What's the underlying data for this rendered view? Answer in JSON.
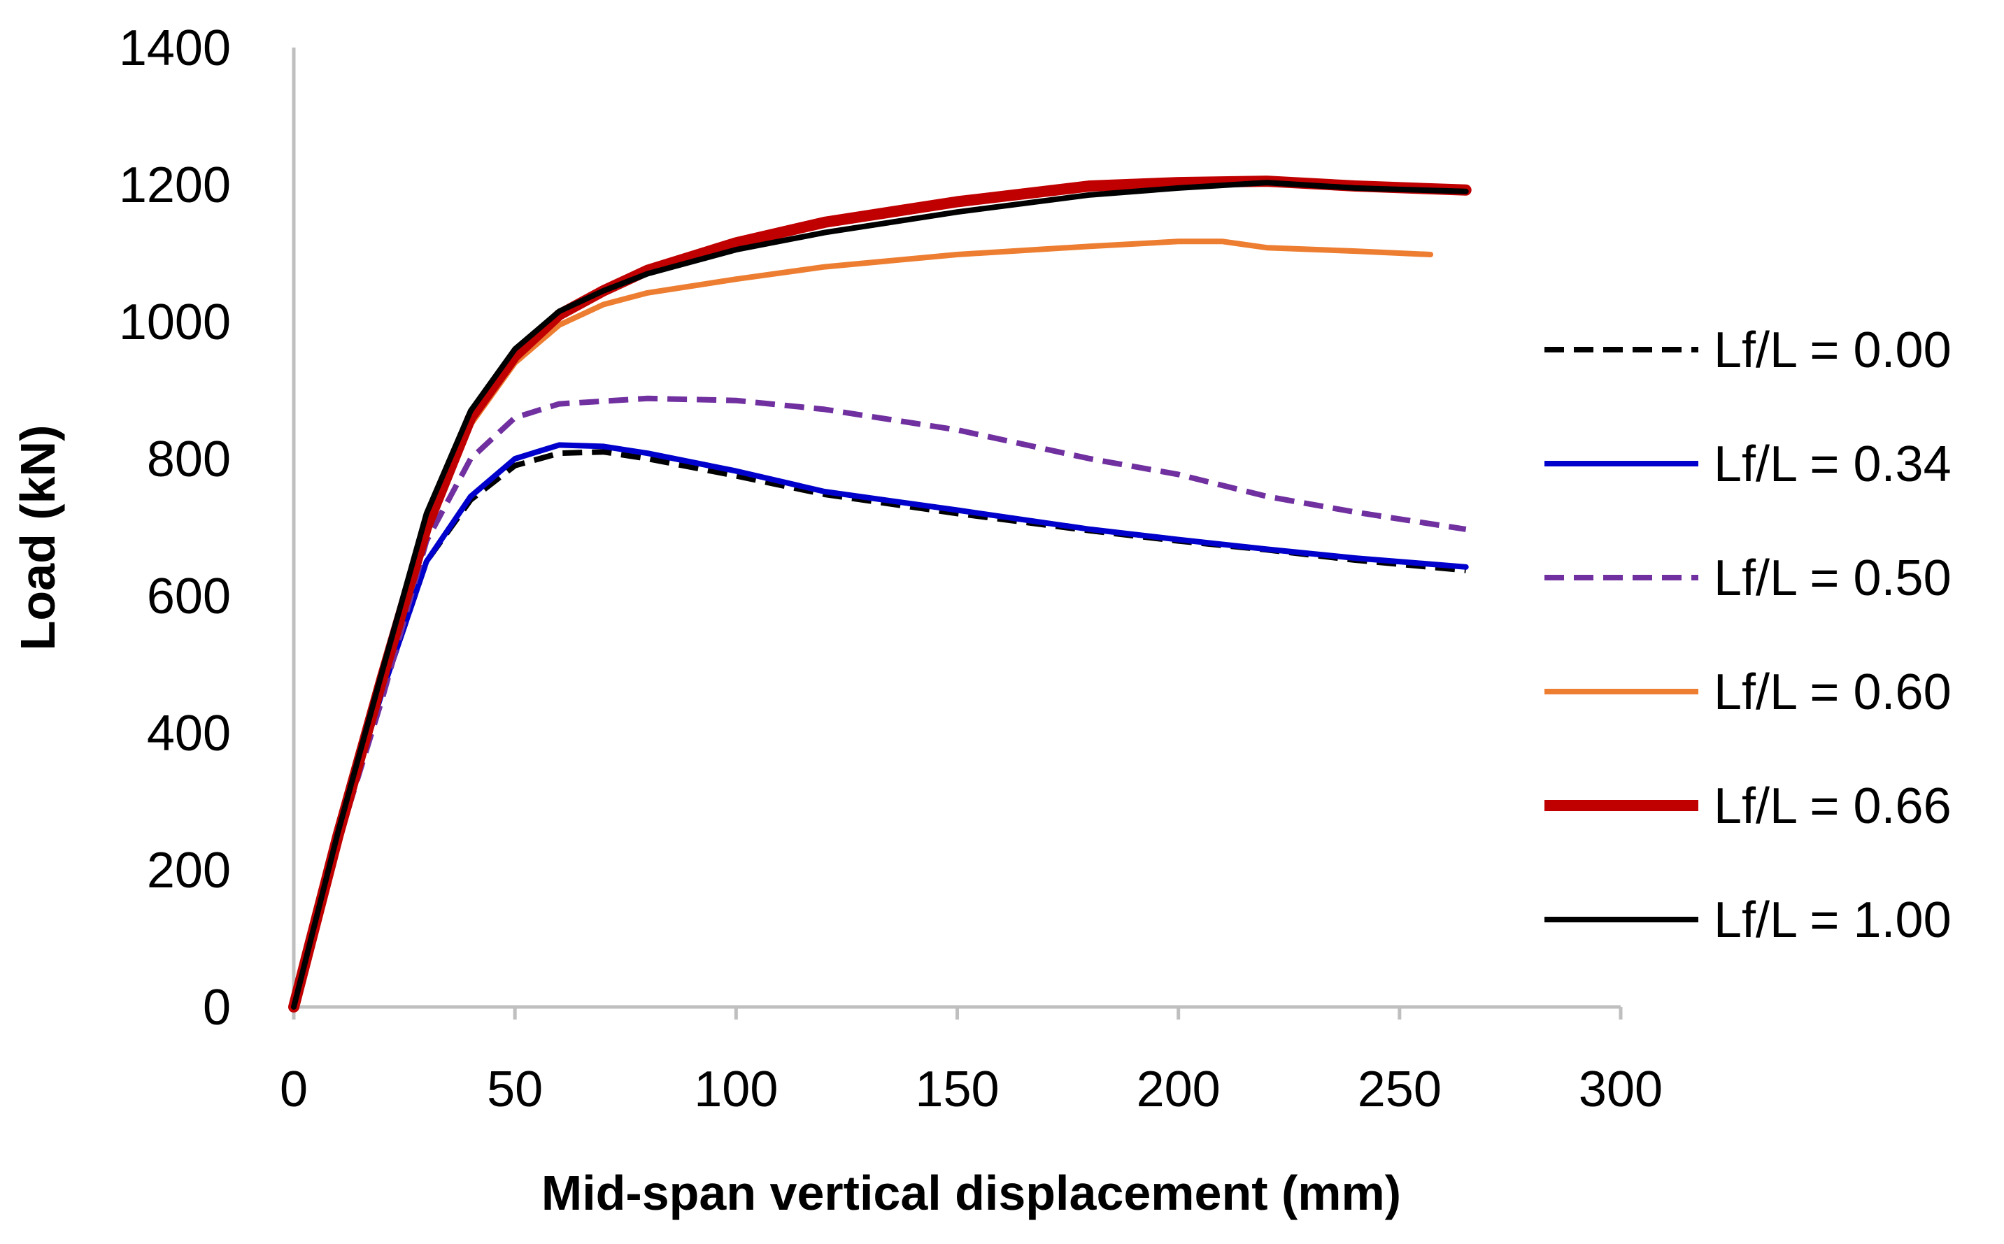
{
  "chart_data": {
    "type": "line",
    "title": "",
    "xlabel": "Mid-span vertical displacement (mm)",
    "ylabel": "Load (kN)",
    "xlim": [
      0,
      300
    ],
    "ylim": [
      0,
      1400
    ],
    "xticks": [
      "0",
      "50",
      "100",
      "150",
      "200",
      "250",
      "300"
    ],
    "yticks": [
      "0",
      "200",
      "400",
      "600",
      "800",
      "1000",
      "1200",
      "1400"
    ],
    "grid": false,
    "legend_position": "right",
    "series": [
      {
        "name": "Lf/L = 0.00",
        "color": "#000000",
        "dash": "dashed",
        "weight": "normal",
        "points": [
          [
            0,
            0
          ],
          [
            10,
            250
          ],
          [
            20,
            460
          ],
          [
            30,
            650
          ],
          [
            40,
            740
          ],
          [
            50,
            790
          ],
          [
            60,
            808
          ],
          [
            70,
            810
          ],
          [
            80,
            800
          ],
          [
            100,
            775
          ],
          [
            120,
            748
          ],
          [
            150,
            720
          ],
          [
            180,
            695
          ],
          [
            200,
            680
          ],
          [
            220,
            667
          ],
          [
            240,
            652
          ],
          [
            265,
            637
          ]
        ]
      },
      {
        "name": "Lf/L = 0.34",
        "color": "#0000cc",
        "dash": "solid",
        "weight": "normal",
        "points": [
          [
            0,
            0
          ],
          [
            10,
            250
          ],
          [
            20,
            460
          ],
          [
            30,
            650
          ],
          [
            40,
            745
          ],
          [
            50,
            800
          ],
          [
            60,
            820
          ],
          [
            70,
            818
          ],
          [
            80,
            808
          ],
          [
            100,
            782
          ],
          [
            120,
            752
          ],
          [
            150,
            725
          ],
          [
            180,
            697
          ],
          [
            200,
            682
          ],
          [
            220,
            668
          ],
          [
            240,
            655
          ],
          [
            265,
            642
          ]
        ]
      },
      {
        "name": "Lf/L = 0.50",
        "color": "#7030a0",
        "dash": "dashed",
        "weight": "normal",
        "points": [
          [
            0,
            0
          ],
          [
            10,
            240
          ],
          [
            20,
            450
          ],
          [
            30,
            680
          ],
          [
            40,
            800
          ],
          [
            50,
            860
          ],
          [
            60,
            880
          ],
          [
            80,
            888
          ],
          [
            100,
            885
          ],
          [
            120,
            872
          ],
          [
            150,
            842
          ],
          [
            180,
            800
          ],
          [
            200,
            777
          ],
          [
            220,
            745
          ],
          [
            240,
            722
          ],
          [
            265,
            697
          ]
        ]
      },
      {
        "name": "Lf/L = 0.60",
        "color": "#ed7d31",
        "dash": "solid",
        "weight": "normal",
        "points": [
          [
            0,
            0
          ],
          [
            10,
            250
          ],
          [
            20,
            470
          ],
          [
            30,
            690
          ],
          [
            40,
            850
          ],
          [
            50,
            940
          ],
          [
            60,
            995
          ],
          [
            70,
            1025
          ],
          [
            80,
            1042
          ],
          [
            100,
            1062
          ],
          [
            120,
            1080
          ],
          [
            150,
            1098
          ],
          [
            180,
            1110
          ],
          [
            200,
            1117
          ],
          [
            210,
            1117
          ],
          [
            220,
            1108
          ],
          [
            240,
            1103
          ],
          [
            257,
            1098
          ]
        ]
      },
      {
        "name": "Lf/L = 0.66",
        "color": "#c00000",
        "dash": "solid",
        "weight": "bold",
        "points": [
          [
            0,
            0
          ],
          [
            10,
            250
          ],
          [
            20,
            480
          ],
          [
            30,
            700
          ],
          [
            40,
            860
          ],
          [
            50,
            950
          ],
          [
            60,
            1010
          ],
          [
            70,
            1045
          ],
          [
            80,
            1075
          ],
          [
            100,
            1115
          ],
          [
            120,
            1145
          ],
          [
            150,
            1175
          ],
          [
            180,
            1198
          ],
          [
            200,
            1203
          ],
          [
            220,
            1205
          ],
          [
            240,
            1198
          ],
          [
            265,
            1192
          ]
        ]
      },
      {
        "name": "Lf/L = 1.00",
        "color": "#000000",
        "dash": "solid",
        "weight": "normal",
        "points": [
          [
            0,
            0
          ],
          [
            10,
            255
          ],
          [
            20,
            490
          ],
          [
            30,
            720
          ],
          [
            40,
            870
          ],
          [
            50,
            960
          ],
          [
            60,
            1015
          ],
          [
            70,
            1045
          ],
          [
            80,
            1070
          ],
          [
            100,
            1105
          ],
          [
            120,
            1130
          ],
          [
            150,
            1160
          ],
          [
            180,
            1185
          ],
          [
            200,
            1195
          ],
          [
            220,
            1203
          ],
          [
            240,
            1195
          ],
          [
            265,
            1190
          ]
        ]
      }
    ]
  }
}
